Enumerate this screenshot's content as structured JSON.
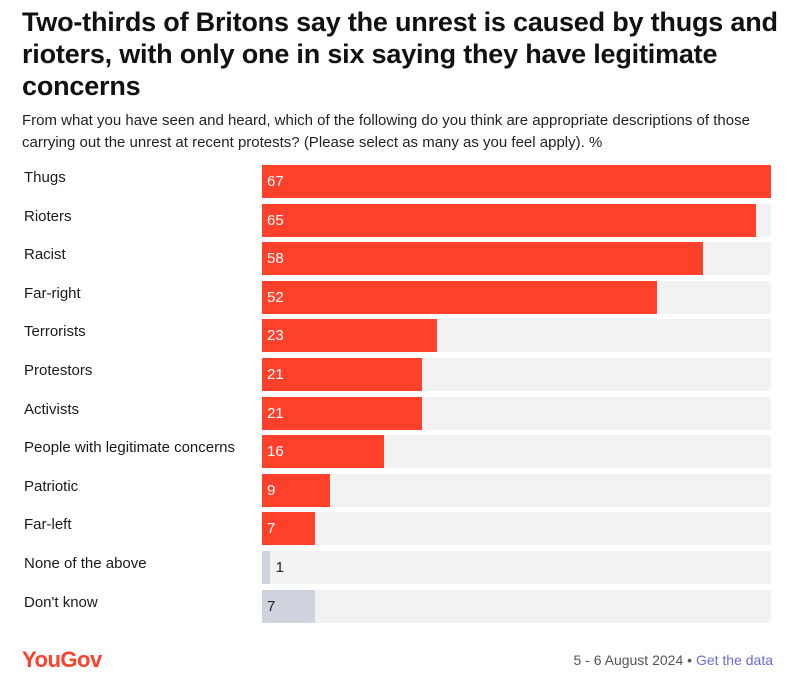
{
  "title": "Two-thirds of Britons say the unrest is caused by thugs and rioters, with only one in six saying they have legitimate concerns",
  "subtitle": "From what you have seen and heard, which of the following do you think are appropriate descriptions of those carrying out the unrest at recent protests? (Please select as many as you feel apply). %",
  "footer": {
    "logo": "YouGov",
    "date": "5 - 6 August 2024",
    "separator": "•",
    "link": "Get the data"
  },
  "colors": {
    "highlight": "#ff412c",
    "muted": "#cfd3dd",
    "track": "#f2f2f2"
  },
  "chart_data": {
    "type": "bar",
    "orientation": "horizontal",
    "title": "Two-thirds of Britons say the unrest is caused by thugs and rioters, with only one in six saying they have legitimate concerns",
    "xlabel": "",
    "ylabel": "",
    "xlim": [
      0,
      67
    ],
    "grid": false,
    "categories": [
      "Thugs",
      "Rioters",
      "Racist",
      "Far-right",
      "Terrorists",
      "Protestors",
      "Activists",
      "People with legitimate concerns",
      "Patriotic",
      "Far-left",
      "None of the above",
      "Don't know"
    ],
    "values": [
      67,
      65,
      58,
      52,
      23,
      21,
      21,
      16,
      9,
      7,
      1,
      7
    ],
    "bar_styles": [
      "highlight",
      "highlight",
      "highlight",
      "highlight",
      "highlight",
      "highlight",
      "highlight",
      "highlight",
      "highlight",
      "highlight",
      "muted",
      "muted"
    ]
  }
}
